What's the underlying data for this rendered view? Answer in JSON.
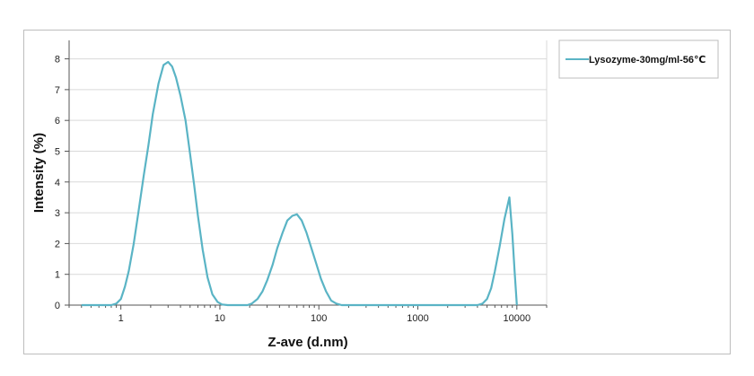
{
  "chart_data": {
    "type": "line",
    "title": "",
    "xlabel": "Z-ave (d.nm)",
    "ylabel": "Intensity (%)",
    "x_scale": "log",
    "xlim": [
      0.3,
      20000
    ],
    "ylim": [
      0,
      8.6
    ],
    "x_ticks": [
      1,
      10,
      100,
      1000,
      10000
    ],
    "x_tick_labels": [
      "1",
      "10",
      "100",
      "1000",
      "10000"
    ],
    "y_ticks": [
      0,
      1,
      2,
      3,
      4,
      5,
      6,
      7,
      8
    ],
    "y_tick_labels": [
      "0",
      "1",
      "2",
      "3",
      "4",
      "5",
      "6",
      "7",
      "8"
    ],
    "grid": "horizontal",
    "legend_position": "right",
    "series": [
      {
        "name": "Lysozyme-30mg/ml-56℃",
        "color": "#5ab4c5",
        "x": [
          0.4,
          0.5,
          0.6,
          0.7,
          0.8,
          0.9,
          1.0,
          1.1,
          1.2,
          1.35,
          1.5,
          1.7,
          1.9,
          2.1,
          2.4,
          2.7,
          3.0,
          3.3,
          3.6,
          4.0,
          4.5,
          5.0,
          5.5,
          6.0,
          6.7,
          7.5,
          8.4,
          9.5,
          10.5,
          12.0,
          13.5,
          15,
          17,
          19,
          21,
          24,
          27,
          30,
          34,
          38,
          43,
          48,
          54,
          60,
          67,
          75,
          84,
          94,
          105,
          118,
          133,
          150,
          170,
          190,
          215,
          240,
          300,
          500,
          1000,
          2000,
          3000,
          4000,
          4500,
          5000,
          5500,
          6000,
          6700,
          7500,
          8400,
          9000,
          9500,
          10000
        ],
        "y": [
          0,
          0,
          0,
          0,
          0,
          0.05,
          0.2,
          0.6,
          1.1,
          2.0,
          3.0,
          4.2,
          5.2,
          6.2,
          7.2,
          7.8,
          7.9,
          7.75,
          7.4,
          6.8,
          6.0,
          4.9,
          3.9,
          2.9,
          1.8,
          0.9,
          0.35,
          0.1,
          0.02,
          0,
          0,
          0,
          0,
          0,
          0.05,
          0.2,
          0.45,
          0.8,
          1.3,
          1.85,
          2.35,
          2.75,
          2.9,
          2.95,
          2.75,
          2.35,
          1.85,
          1.35,
          0.85,
          0.45,
          0.15,
          0.05,
          0,
          0,
          0,
          0,
          0,
          0,
          0,
          0,
          0,
          0,
          0.05,
          0.2,
          0.55,
          1.1,
          1.9,
          2.8,
          3.5,
          2.3,
          1.1,
          0
        ]
      }
    ]
  }
}
